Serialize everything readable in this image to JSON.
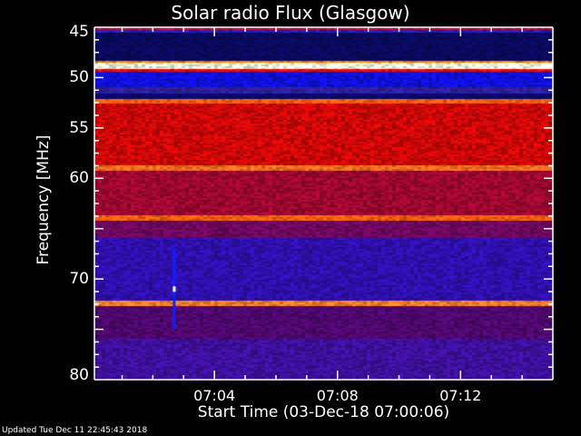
{
  "chart_data": {
    "type": "heatmap",
    "title": "Solar radio Flux (Glasgow)",
    "xlabel": "Start Time (03-Dec-18 07:00:06)",
    "ylabel": "Frequency [MHz]",
    "x_range_minutes_after_0700": [
      0.1,
      15.0
    ],
    "ylim": [
      45,
      80
    ],
    "y_inverted": true,
    "x_ticks": [
      {
        "label": "07:04",
        "minute": 4
      },
      {
        "label": "07:08",
        "minute": 8
      },
      {
        "label": "07:12",
        "minute": 12
      }
    ],
    "y_ticks": [
      {
        "label": "45",
        "value": 45
      },
      {
        "label": "50",
        "value": 50
      },
      {
        "label": "55",
        "value": 55
      },
      {
        "label": "60",
        "value": 60
      },
      {
        "label": "70",
        "value": 70
      },
      {
        "label": "80",
        "value": 80
      }
    ],
    "frequency_bands": [
      {
        "from": 45.0,
        "to": 45.3,
        "color": "#c01040"
      },
      {
        "from": 45.3,
        "to": 45.6,
        "color": "#2020c0"
      },
      {
        "from": 45.6,
        "to": 48.4,
        "color": "#0a0a60"
      },
      {
        "from": 48.4,
        "to": 48.6,
        "color": "#ff8000"
      },
      {
        "from": 48.6,
        "to": 49.2,
        "color": "#ffffe0"
      },
      {
        "from": 49.2,
        "to": 49.5,
        "color": "#e01010"
      },
      {
        "from": 49.5,
        "to": 51.0,
        "color": "#1010e0"
      },
      {
        "from": 51.0,
        "to": 51.6,
        "color": "#3020a0"
      },
      {
        "from": 51.6,
        "to": 52.2,
        "color": "#0a0a70"
      },
      {
        "from": 52.2,
        "to": 52.6,
        "color": "#ff6010"
      },
      {
        "from": 52.6,
        "to": 58.8,
        "color": "#d00808"
      },
      {
        "from": 58.8,
        "to": 59.3,
        "color": "#ff7020"
      },
      {
        "from": 59.3,
        "to": 63.7,
        "color": "#a00830"
      },
      {
        "from": 63.7,
        "to": 64.3,
        "color": "#ff6010"
      },
      {
        "from": 64.3,
        "to": 66.0,
        "color": "#700860"
      },
      {
        "from": 66.0,
        "to": 72.2,
        "color": "#3010b0"
      },
      {
        "from": 72.2,
        "to": 72.7,
        "color": "#ff8030"
      },
      {
        "from": 72.7,
        "to": 76.0,
        "color": "#500870"
      },
      {
        "from": 76.0,
        "to": 80.0,
        "color": "#4010a0"
      }
    ],
    "burst": {
      "minute": 2.65,
      "freq_from": 67.0,
      "freq_to": 75.0,
      "color": "#1020ff",
      "peak_freq": 71.0,
      "peak_color": "#ffffff"
    }
  },
  "footer": {
    "updated": "Updated Tue Dec 11 22:45:43 2018"
  }
}
